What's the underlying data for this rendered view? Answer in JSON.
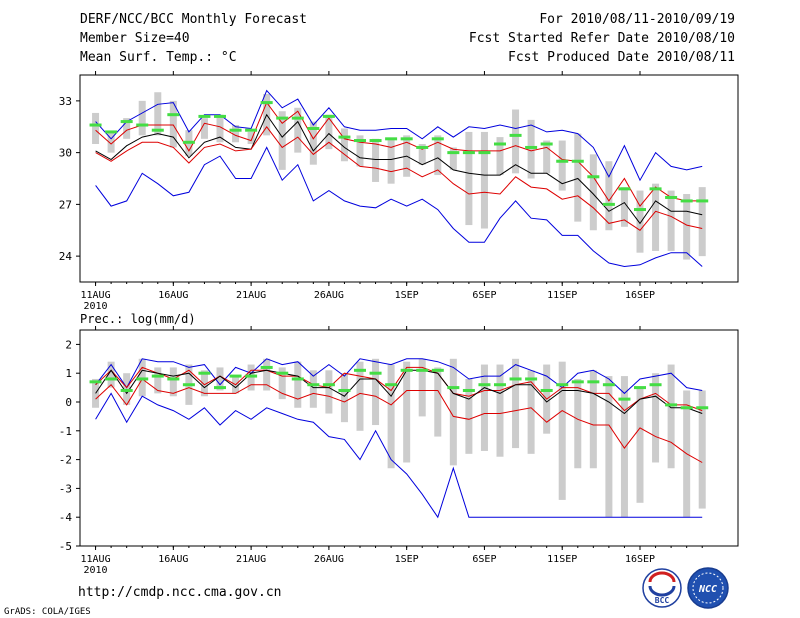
{
  "header": {
    "title": "DERF/NCC/BCC Monthly Forecast",
    "member_size": "Member Size=40",
    "variable": "Mean Surf. Temp.: °C",
    "forecast_period": "For 2010/08/11-2010/09/19",
    "start_date": "Fcst Started Refer Date 2010/08/10",
    "produced_date": "Fcst Produced Date 2010/08/11"
  },
  "footer": {
    "url": "http://cmdp.ncc.cma.gov.cn",
    "grads": "GrADS: COLA/IGES",
    "logo1": "BCC",
    "logo2": "NCC"
  },
  "colors": {
    "max_line": "#0000dd",
    "min_line": "#0000dd",
    "upper_line": "#dd0000",
    "lower_line": "#dd0000",
    "mean_line": "#000000",
    "box": "#cccccc",
    "marker": "#44dd44"
  },
  "chart_data": [
    {
      "type": "line",
      "title": "Mean Surf. Temp.: °C",
      "x_tick_labels": [
        "11AUG",
        "16AUG",
        "21AUG",
        "26AUG",
        "1SEP",
        "6SEP",
        "11SEP",
        "16SEP"
      ],
      "x_tick_days": [
        1,
        6,
        11,
        16,
        21,
        26,
        31,
        36
      ],
      "year_label": "2010",
      "ylim": [
        22.5,
        34.5
      ],
      "yticks": [
        24,
        27,
        30,
        33
      ],
      "days": [
        1,
        2,
        3,
        4,
        5,
        6,
        7,
        8,
        9,
        10,
        11,
        12,
        13,
        14,
        15,
        16,
        17,
        18,
        19,
        20,
        21,
        22,
        23,
        24,
        25,
        26,
        27,
        28,
        29,
        30,
        31,
        32,
        33,
        34,
        35,
        36,
        37,
        38,
        39,
        40
      ],
      "series": [
        {
          "name": "max",
          "values": [
            31.8,
            30.8,
            31.8,
            32.3,
            32.8,
            32.9,
            31.2,
            32.2,
            32.2,
            31.5,
            31.4,
            33.6,
            32.6,
            33.1,
            31.6,
            32.6,
            31.5,
            31.3,
            31.3,
            31.4,
            31.4,
            30.8,
            31.5,
            30.9,
            31.5,
            31.4,
            31.6,
            31.4,
            31.6,
            31.2,
            31.3,
            31.1,
            30.3,
            28.6,
            30.4,
            28.4,
            30.0,
            29.2,
            29.0,
            29.2
          ]
        },
        {
          "name": "upper",
          "values": [
            31.3,
            30.5,
            31.3,
            31.6,
            31.6,
            31.6,
            30.1,
            31.7,
            31.5,
            31.0,
            30.7,
            32.9,
            31.7,
            32.4,
            30.8,
            32.0,
            30.8,
            30.6,
            30.5,
            30.3,
            30.6,
            30.2,
            30.6,
            30.2,
            30.1,
            30.1,
            30.1,
            30.4,
            30.1,
            30.3,
            29.6,
            29.5,
            28.6,
            27.2,
            28.5,
            26.9,
            28.0,
            27.4,
            27.2,
            27.2
          ]
        },
        {
          "name": "mean",
          "values": [
            30.1,
            29.6,
            30.4,
            30.9,
            31.1,
            30.9,
            29.7,
            30.6,
            30.9,
            30.3,
            30.2,
            32.2,
            30.9,
            31.8,
            30.1,
            31.1,
            30.3,
            29.7,
            29.6,
            29.6,
            29.8,
            29.3,
            29.7,
            29.0,
            28.8,
            28.7,
            28.7,
            29.3,
            28.8,
            28.8,
            28.2,
            28.5,
            27.6,
            26.6,
            27.1,
            25.9,
            27.2,
            26.6,
            26.6,
            26.4
          ]
        },
        {
          "name": "lower",
          "values": [
            30.0,
            29.5,
            30.1,
            30.6,
            30.6,
            30.3,
            29.4,
            30.3,
            30.5,
            30.1,
            30.2,
            31.5,
            30.3,
            30.9,
            29.9,
            30.6,
            29.9,
            29.2,
            29.1,
            28.9,
            29.1,
            28.6,
            29.0,
            28.2,
            27.6,
            27.7,
            27.6,
            28.6,
            28.0,
            27.9,
            27.3,
            27.5,
            26.8,
            25.9,
            26.1,
            25.5,
            26.6,
            26.3,
            25.8,
            25.6
          ]
        },
        {
          "name": "min",
          "values": [
            28.1,
            26.9,
            27.2,
            28.8,
            28.2,
            27.5,
            27.7,
            29.3,
            29.8,
            28.5,
            28.5,
            30.3,
            28.4,
            29.3,
            27.2,
            27.8,
            27.2,
            26.9,
            26.8,
            27.3,
            26.9,
            27.3,
            26.7,
            25.6,
            24.8,
            24.8,
            26.2,
            27.2,
            26.2,
            26.1,
            25.2,
            25.2,
            24.3,
            23.6,
            23.4,
            23.5,
            23.9,
            24.2,
            24.2,
            23.4
          ]
        }
      ],
      "boxes": [
        {
          "low": 30.5,
          "high": 32.3
        },
        {
          "low": 30.0,
          "high": 31.2
        },
        {
          "low": 30.8,
          "high": 32.0
        },
        {
          "low": 31.0,
          "high": 33.0
        },
        {
          "low": 31.0,
          "high": 33.5
        },
        {
          "low": 30.3,
          "high": 33.0
        },
        {
          "low": 29.8,
          "high": 31.3
        },
        {
          "low": 30.8,
          "high": 32.0
        },
        {
          "low": 30.6,
          "high": 32.2
        },
        {
          "low": 30.6,
          "high": 31.6
        },
        {
          "low": 30.5,
          "high": 31.2
        },
        {
          "low": 31.0,
          "high": 33.4
        },
        {
          "low": 29.0,
          "high": 32.4
        },
        {
          "low": 30.0,
          "high": 32.6
        },
        {
          "low": 29.3,
          "high": 31.8
        },
        {
          "low": 30.2,
          "high": 32.2
        },
        {
          "low": 29.5,
          "high": 31.4
        },
        {
          "low": 29.2,
          "high": 31.0
        },
        {
          "low": 28.3,
          "high": 30.8
        },
        {
          "low": 28.2,
          "high": 30.8
        },
        {
          "low": 28.6,
          "high": 31.0
        },
        {
          "low": 29.3,
          "high": 30.5
        },
        {
          "low": 28.7,
          "high": 31.0
        },
        {
          "low": 29.0,
          "high": 30.3
        },
        {
          "low": 25.8,
          "high": 31.2
        },
        {
          "low": 25.6,
          "high": 31.2
        },
        {
          "low": 28.7,
          "high": 30.9
        },
        {
          "low": 28.8,
          "high": 32.5
        },
        {
          "low": 28.5,
          "high": 31.9
        },
        {
          "low": 28.8,
          "high": 30.7
        },
        {
          "low": 27.8,
          "high": 30.7
        },
        {
          "low": 26.0,
          "high": 31.1
        },
        {
          "low": 25.5,
          "high": 29.9
        },
        {
          "low": 25.5,
          "high": 29.5
        },
        {
          "low": 25.7,
          "high": 28.0
        },
        {
          "low": 24.2,
          "high": 27.8
        },
        {
          "low": 24.3,
          "high": 28.2
        },
        {
          "low": 24.3,
          "high": 27.8
        },
        {
          "low": 23.8,
          "high": 27.6
        },
        {
          "low": 24.0,
          "high": 28.0
        }
      ],
      "markers": [
        31.6,
        31.2,
        31.8,
        31.6,
        31.3,
        32.2,
        30.6,
        32.1,
        32.1,
        31.3,
        31.3,
        32.9,
        32.0,
        32.0,
        31.4,
        32.1,
        30.9,
        30.7,
        30.7,
        30.8,
        30.8,
        30.3,
        30.8,
        30.0,
        30.0,
        30.0,
        30.5,
        31.0,
        30.3,
        30.5,
        29.5,
        29.5,
        28.6,
        27.0,
        27.9,
        26.7,
        27.9,
        27.4,
        27.2,
        27.2
      ]
    },
    {
      "type": "line",
      "title": "Prec.: log(mm/d)",
      "x_tick_labels": [
        "11AUG",
        "16AUG",
        "21AUG",
        "26AUG",
        "1SEP",
        "6SEP",
        "11SEP",
        "16SEP"
      ],
      "x_tick_days": [
        1,
        6,
        11,
        16,
        21,
        26,
        31,
        36
      ],
      "year_label": "2010",
      "ylim": [
        -5,
        2.5
      ],
      "yticks": [
        -5,
        -4,
        -3,
        -2,
        -1,
        0,
        1,
        2
      ],
      "days": [
        1,
        2,
        3,
        4,
        5,
        6,
        7,
        8,
        9,
        10,
        11,
        12,
        13,
        14,
        15,
        16,
        17,
        18,
        19,
        20,
        21,
        22,
        23,
        24,
        25,
        26,
        27,
        28,
        29,
        30,
        31,
        32,
        33,
        34,
        35,
        36,
        37,
        38,
        39,
        40
      ],
      "series": [
        {
          "name": "max",
          "values": [
            0.6,
            1.3,
            0.5,
            1.5,
            1.4,
            1.4,
            1.2,
            1.3,
            0.6,
            1.2,
            1.0,
            1.5,
            1.3,
            1.4,
            0.9,
            1.3,
            0.9,
            1.5,
            1.4,
            1.3,
            1.5,
            1.5,
            1.4,
            1.2,
            0.8,
            0.9,
            0.9,
            1.3,
            1.1,
            0.9,
            0.5,
            1.0,
            1.1,
            0.8,
            0.3,
            0.8,
            0.9,
            1.0,
            0.5,
            0.4
          ]
        },
        {
          "name": "upper",
          "values": [
            0.6,
            1.1,
            0.5,
            1.2,
            1.0,
            0.8,
            1.1,
            0.6,
            0.9,
            0.6,
            1.1,
            1.1,
            0.9,
            0.9,
            0.6,
            0.5,
            1.0,
            0.9,
            0.8,
            0.4,
            1.2,
            1.2,
            1.0,
            0.3,
            0.2,
            0.4,
            0.4,
            0.6,
            0.7,
            0.1,
            0.5,
            0.5,
            0.3,
            0.3,
            -0.3,
            0.1,
            0.3,
            -0.1,
            -0.1,
            -0.3
          ]
        },
        {
          "name": "mean",
          "values": [
            0.3,
            1.1,
            0.3,
            1.1,
            1.0,
            0.9,
            1.0,
            0.5,
            0.9,
            0.5,
            1.0,
            1.1,
            1.0,
            0.9,
            0.5,
            0.5,
            0.2,
            0.8,
            0.8,
            0.2,
            1.1,
            1.1,
            1.0,
            0.3,
            0.1,
            0.5,
            0.3,
            0.6,
            0.6,
            0.0,
            0.4,
            0.4,
            0.3,
            0.0,
            -0.4,
            0.1,
            0.2,
            -0.2,
            -0.2,
            -0.4
          ]
        },
        {
          "name": "lower",
          "values": [
            0.1,
            0.6,
            -0.1,
            0.8,
            0.4,
            0.3,
            0.5,
            0.3,
            0.3,
            0.3,
            0.6,
            0.6,
            0.3,
            0.1,
            0.3,
            0.2,
            0.0,
            0.3,
            0.2,
            -0.1,
            0.4,
            0.4,
            0.4,
            -0.5,
            -0.6,
            -0.4,
            -0.4,
            -0.3,
            -0.2,
            -0.7,
            -0.3,
            -0.6,
            -0.8,
            -0.8,
            -1.6,
            -0.9,
            -1.2,
            -1.4,
            -1.8,
            -2.1
          ]
        },
        {
          "name": "min",
          "values": [
            -0.6,
            0.3,
            -0.7,
            0.2,
            -0.1,
            -0.3,
            -0.6,
            -0.2,
            -0.8,
            -0.3,
            -0.6,
            -0.2,
            -0.4,
            -0.6,
            -0.7,
            -1.2,
            -1.3,
            -2.0,
            -1.0,
            -2.0,
            -2.5,
            -3.2,
            -4.0,
            -2.3,
            -4.0,
            -4.0,
            -4.0,
            -4.0,
            -4.0,
            -4.0,
            -4.0,
            -4.0,
            -4.0,
            -4.0,
            -4.0,
            -4.0,
            -4.0,
            -4.0,
            -4.0,
            -4.0
          ]
        }
      ],
      "boxes": [
        {
          "low": -0.2,
          "high": 0.8
        },
        {
          "low": 0.5,
          "high": 1.4
        },
        {
          "low": -0.1,
          "high": 1.0
        },
        {
          "low": 0.2,
          "high": 1.5
        },
        {
          "low": 0.3,
          "high": 1.2
        },
        {
          "low": 0.2,
          "high": 1.2
        },
        {
          "low": -0.1,
          "high": 1.3
        },
        {
          "low": 0.2,
          "high": 1.1
        },
        {
          "low": 0.4,
          "high": 1.2
        },
        {
          "low": 0.3,
          "high": 0.9
        },
        {
          "low": 0.4,
          "high": 1.3
        },
        {
          "low": 0.4,
          "high": 1.5
        },
        {
          "low": 0.1,
          "high": 1.2
        },
        {
          "low": -0.2,
          "high": 1.4
        },
        {
          "low": -0.2,
          "high": 1.1
        },
        {
          "low": -0.4,
          "high": 1.1
        },
        {
          "low": -0.7,
          "high": 1.0
        },
        {
          "low": -1.0,
          "high": 1.4
        },
        {
          "low": -0.8,
          "high": 1.5
        },
        {
          "low": -2.3,
          "high": 1.3
        },
        {
          "low": -2.1,
          "high": 1.4
        },
        {
          "low": -0.5,
          "high": 1.5
        },
        {
          "low": -1.2,
          "high": 1.2
        },
        {
          "low": -2.2,
          "high": 1.5
        },
        {
          "low": -1.8,
          "high": 0.8
        },
        {
          "low": -1.7,
          "high": 1.3
        },
        {
          "low": -1.9,
          "high": 1.3
        },
        {
          "low": -1.6,
          "high": 1.5
        },
        {
          "low": -1.8,
          "high": 1.1
        },
        {
          "low": -1.1,
          "high": 1.3
        },
        {
          "low": -3.4,
          "high": 1.4
        },
        {
          "low": -2.3,
          "high": 0.8
        },
        {
          "low": -2.3,
          "high": 1.1
        },
        {
          "low": -4.0,
          "high": 0.9
        },
        {
          "low": -4.0,
          "high": 0.9
        },
        {
          "low": -3.5,
          "high": 0.5
        },
        {
          "low": -2.1,
          "high": 1.0
        },
        {
          "low": -2.3,
          "high": 1.3
        },
        {
          "low": -4.0,
          "high": 0.4
        },
        {
          "low": -3.7,
          "high": 0.4
        }
      ],
      "markers": [
        0.7,
        0.8,
        0.4,
        0.8,
        0.9,
        0.8,
        0.6,
        1.0,
        0.5,
        0.9,
        0.9,
        1.2,
        1.0,
        0.8,
        0.6,
        0.6,
        0.4,
        1.1,
        1.0,
        0.6,
        1.1,
        1.1,
        1.1,
        0.5,
        0.4,
        0.6,
        0.6,
        0.8,
        0.8,
        0.4,
        0.6,
        0.7,
        0.7,
        0.6,
        0.1,
        0.5,
        0.6,
        -0.1,
        -0.2,
        -0.2
      ]
    }
  ]
}
